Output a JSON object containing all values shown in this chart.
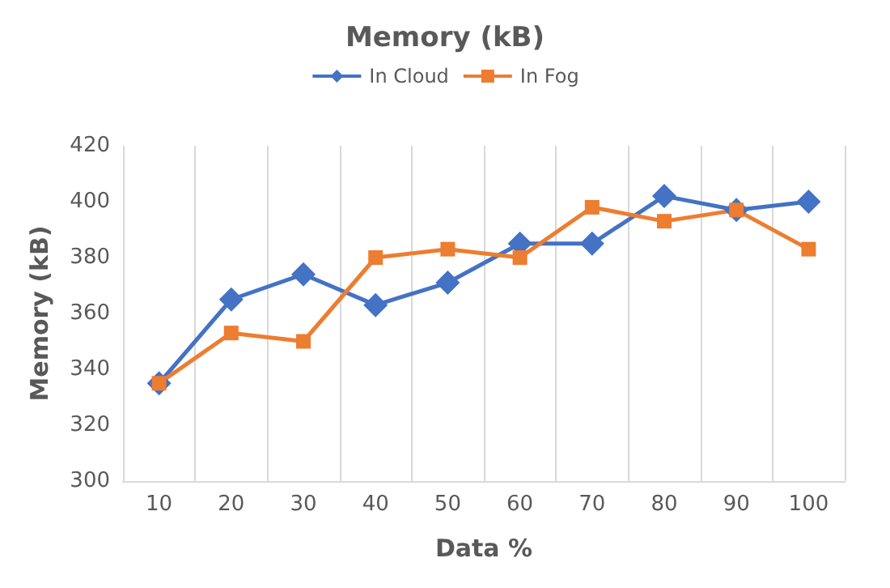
{
  "chart_data": {
    "type": "line",
    "title": "Memory (kB)",
    "xlabel": "Data %",
    "ylabel": "Memory (kB)",
    "categories": [
      "10",
      "20",
      "30",
      "40",
      "50",
      "60",
      "70",
      "80",
      "90",
      "100"
    ],
    "series": [
      {
        "name": "In Cloud",
        "color": "#4472c4",
        "marker": "diamond",
        "values": [
          335,
          365,
          374,
          363,
          371,
          385,
          385,
          402,
          397,
          400
        ]
      },
      {
        "name": "In Fog",
        "color": "#ed7d31",
        "marker": "square",
        "values": [
          335,
          353,
          350,
          380,
          383,
          380,
          398,
          393,
          397,
          383
        ]
      }
    ],
    "ylim": [
      300,
      420
    ],
    "yticks": [
      300,
      320,
      340,
      360,
      380,
      400,
      420
    ],
    "grid": "x",
    "legend": "top",
    "line_style": "solid"
  }
}
